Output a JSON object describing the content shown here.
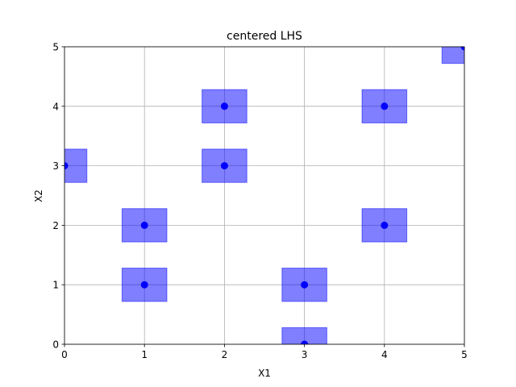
{
  "chart_data": {
    "type": "scatter",
    "title": "centered LHS",
    "xlabel": "X1",
    "ylabel": "X2",
    "xlim": [
      0,
      5
    ],
    "ylim": [
      0,
      5
    ],
    "xticks": [
      "0",
      "1",
      "2",
      "3",
      "4",
      "5"
    ],
    "yticks": [
      "0",
      "1",
      "2",
      "3",
      "4",
      "5"
    ],
    "grid": true,
    "legend": "none",
    "points": [
      {
        "x": 0,
        "y": 3
      },
      {
        "x": 1,
        "y": 1
      },
      {
        "x": 1,
        "y": 2
      },
      {
        "x": 2,
        "y": 3
      },
      {
        "x": 2,
        "y": 4
      },
      {
        "x": 3,
        "y": 0
      },
      {
        "x": 3,
        "y": 1
      },
      {
        "x": 4,
        "y": 2
      },
      {
        "x": 4,
        "y": 4
      },
      {
        "x": 5,
        "y": 5
      }
    ],
    "cell_half_width": 0.28,
    "colors": {
      "point": "#0000ff",
      "cell_fill": "#0000ff",
      "cell_fill_opacity": 0.5,
      "grid": "#b0b0b0",
      "axis": "#000000"
    }
  }
}
